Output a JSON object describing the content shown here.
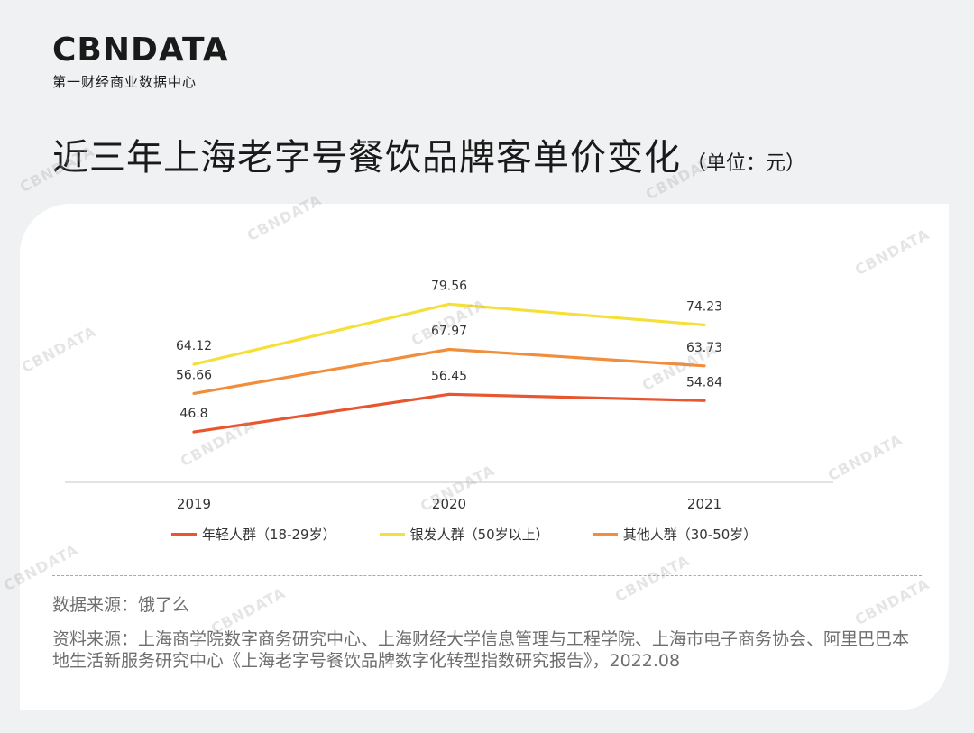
{
  "logo": {
    "mark": "CBNDATA",
    "subtitle": "第一财经商业数据中心"
  },
  "title": "近三年上海老字号餐饮品牌客单价变化",
  "unit": "（单位：元）",
  "watermark": "CBNDATA",
  "chart_data": {
    "type": "line",
    "x": [
      "2019",
      "2020",
      "2021"
    ],
    "series": [
      {
        "name": "年轻人群（18-29岁）",
        "color": "#e8552f",
        "values": [
          46.8,
          56.45,
          54.84
        ],
        "labels": [
          "46.8",
          "56.45",
          "54.84"
        ]
      },
      {
        "name": "银发人群（50岁以上）",
        "color": "#f5e03a",
        "values": [
          64.12,
          79.56,
          74.23
        ],
        "labels": [
          "64.12",
          "79.56",
          "74.23"
        ]
      },
      {
        "name": "其他人群（30-50岁）",
        "color": "#f28d3c",
        "values": [
          56.66,
          67.97,
          63.73
        ],
        "labels": [
          "56.66",
          "67.97",
          "63.73"
        ]
      }
    ],
    "grid": false,
    "legend": "bottom"
  },
  "sources": {
    "data_source": "数据来源：饿了么",
    "material_source": "资料来源：上海商学院数字商务研究中心、上海财经大学信息管理与工程学院、上海市电子商务协会、阿里巴巴本地生活新服务研究中心《上海老字号餐饮品牌数字化转型指数研究报告》，2022.08"
  }
}
